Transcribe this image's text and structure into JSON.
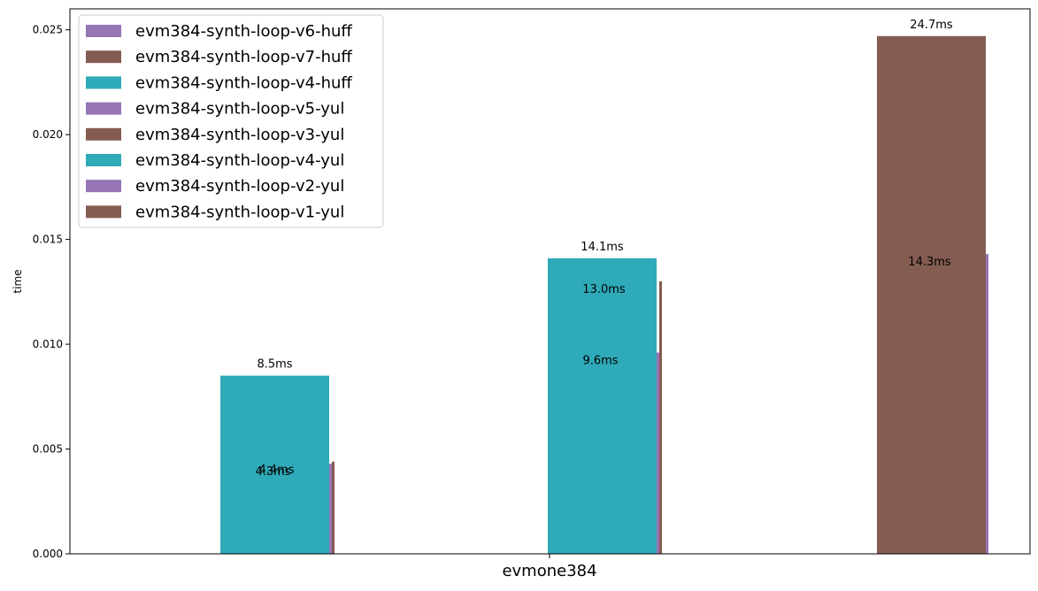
{
  "chart_data": {
    "type": "bar",
    "title": "",
    "xlabel": "",
    "ylabel": "time",
    "ylim": [
      0,
      0.026
    ],
    "yticks": [
      "0.000",
      "0.005",
      "0.010",
      "0.015",
      "0.020",
      "0.025"
    ],
    "categories": [
      "evmone384"
    ],
    "legend_position": "top-left",
    "grid": false,
    "colors": {
      "purple": "#9575b4",
      "brown": "#845c52",
      "teal": "#2eaab8"
    },
    "series": [
      {
        "name": "evm384-synth-loop-v6-huff",
        "color": "#9575b4",
        "value": 0.0043,
        "label": "4.3ms",
        "group": 0,
        "slot": 1
      },
      {
        "name": "evm384-synth-loop-v7-huff",
        "color": "#845c52",
        "value": 0.0044,
        "label": "4.4ms",
        "group": 0,
        "slot": 2
      },
      {
        "name": "evm384-synth-loop-v4-huff",
        "color": "#2eaab8",
        "value": 0.0085,
        "label": "8.5ms",
        "group": 0,
        "slot": 0
      },
      {
        "name": "evm384-synth-loop-v5-yul",
        "color": "#9575b4",
        "value": 0.0096,
        "label": "9.6ms",
        "group": 1,
        "slot": 1
      },
      {
        "name": "evm384-synth-loop-v3-yul",
        "color": "#845c52",
        "value": 0.013,
        "label": "13.0ms",
        "group": 1,
        "slot": 2
      },
      {
        "name": "evm384-synth-loop-v4-yul",
        "color": "#2eaab8",
        "value": 0.0141,
        "label": "14.1ms",
        "group": 1,
        "slot": 0
      },
      {
        "name": "evm384-synth-loop-v2-yul",
        "color": "#9575b4",
        "value": 0.0143,
        "label": "14.3ms",
        "group": 2,
        "slot": 1
      },
      {
        "name": "evm384-synth-loop-v1-yul",
        "color": "#845c52",
        "value": 0.0247,
        "label": "24.7ms",
        "group": 2,
        "slot": 0
      }
    ]
  }
}
